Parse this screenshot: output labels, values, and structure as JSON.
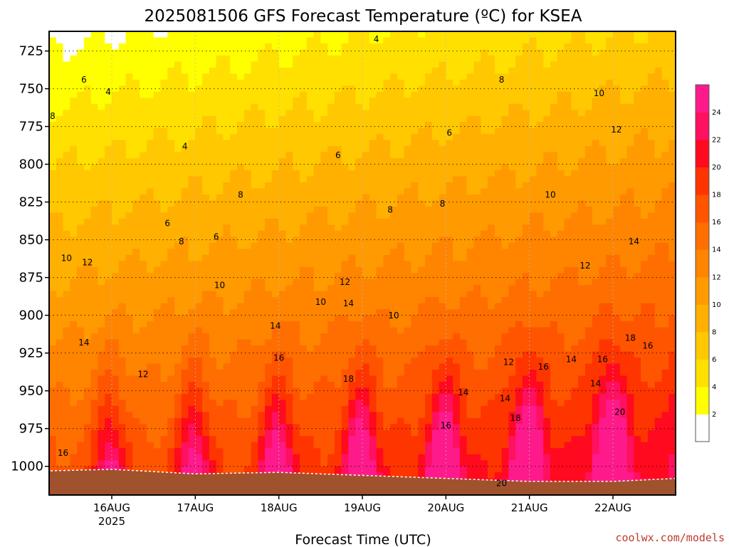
{
  "title": "2025081506 GFS Forecast Temperature (ºC) for KSEA",
  "credit": "coolwx.com/models",
  "chart_data": {
    "type": "heatmap",
    "title": "2025081506 GFS Forecast Temperature (ºC) for KSEA",
    "xlabel": "Forecast Time (UTC)",
    "ylabel": "",
    "x_ticks": [
      {
        "t": 24,
        "label": "16AUG",
        "sublabel": "2025"
      },
      {
        "t": 48,
        "label": "17AUG",
        "sublabel": ""
      },
      {
        "t": 72,
        "label": "18AUG",
        "sublabel": ""
      },
      {
        "t": 96,
        "label": "19AUG",
        "sublabel": ""
      },
      {
        "t": 120,
        "label": "20AUG",
        "sublabel": ""
      },
      {
        "t": 144,
        "label": "21AUG",
        "sublabel": ""
      },
      {
        "t": 168,
        "label": "22AUG",
        "sublabel": ""
      }
    ],
    "xlim": [
      6,
      186
    ],
    "y_ticks": [
      725,
      750,
      775,
      800,
      825,
      850,
      875,
      900,
      925,
      950,
      975,
      1000
    ],
    "ylim": [
      712,
      1019
    ],
    "grid": true,
    "colorbar": {
      "levels": [
        0,
        2,
        4,
        6,
        8,
        10,
        12,
        14,
        16,
        18,
        20,
        22,
        24,
        26
      ],
      "tick_labels": [
        "2",
        "4",
        "6",
        "8",
        "10",
        "12",
        "14",
        "16",
        "18",
        "20",
        "22",
        "24"
      ],
      "colors": [
        "#ffffff",
        "#ffff00",
        "#ffe000",
        "#ffc800",
        "#ffb000",
        "#ff9a00",
        "#ff8400",
        "#ff6e00",
        "#ff5500",
        "#ff3500",
        "#ff0a1e",
        "#ff1060",
        "#ff1a8c"
      ]
    },
    "surface_pressure": [
      {
        "t": 6,
        "p": 1003
      },
      {
        "t": 24,
        "p": 1002
      },
      {
        "t": 48,
        "p": 1005
      },
      {
        "t": 72,
        "p": 1004
      },
      {
        "t": 96,
        "p": 1006
      },
      {
        "t": 120,
        "p": 1008
      },
      {
        "t": 144,
        "p": 1010
      },
      {
        "t": 168,
        "p": 1010
      },
      {
        "t": 186,
        "p": 1008
      }
    ],
    "contour_labels": [
      {
        "t": 10,
        "p": 993,
        "value": "16"
      },
      {
        "t": 16,
        "p": 920,
        "value": "14"
      },
      {
        "t": 11,
        "p": 864,
        "value": "10"
      },
      {
        "t": 17,
        "p": 867,
        "value": "12"
      },
      {
        "t": 7,
        "p": 770,
        "value": "8"
      },
      {
        "t": 16,
        "p": 746,
        "value": "6"
      },
      {
        "t": 23,
        "p": 754,
        "value": "4"
      },
      {
        "t": 33,
        "p": 941,
        "value": "12"
      },
      {
        "t": 40,
        "p": 841,
        "value": "6"
      },
      {
        "t": 44,
        "p": 853,
        "value": "8"
      },
      {
        "t": 45,
        "p": 790,
        "value": "4"
      },
      {
        "t": 55,
        "p": 882,
        "value": "10"
      },
      {
        "t": 54,
        "p": 850,
        "value": "6"
      },
      {
        "t": 61,
        "p": 822,
        "value": "8"
      },
      {
        "t": 71,
        "p": 909,
        "value": "14"
      },
      {
        "t": 72,
        "p": 930,
        "value": "16"
      },
      {
        "t": 84,
        "p": 893,
        "value": "10"
      },
      {
        "t": 91,
        "p": 880,
        "value": "12"
      },
      {
        "t": 92,
        "p": 894,
        "value": "14"
      },
      {
        "t": 92,
        "p": 944,
        "value": "18"
      },
      {
        "t": 89,
        "p": 796,
        "value": "6"
      },
      {
        "t": 100,
        "p": 719,
        "value": "4"
      },
      {
        "t": 104,
        "p": 832,
        "value": "8"
      },
      {
        "t": 105,
        "p": 902,
        "value": "10"
      },
      {
        "t": 120,
        "p": 975,
        "value": "16"
      },
      {
        "t": 125,
        "p": 953,
        "value": "14"
      },
      {
        "t": 119,
        "p": 828,
        "value": "8"
      },
      {
        "t": 121,
        "p": 781,
        "value": "6"
      },
      {
        "t": 136,
        "p": 746,
        "value": "8"
      },
      {
        "t": 138,
        "p": 933,
        "value": "12"
      },
      {
        "t": 137,
        "p": 957,
        "value": "14"
      },
      {
        "t": 140,
        "p": 970,
        "value": "18"
      },
      {
        "t": 136,
        "p": 1013,
        "value": "20"
      },
      {
        "t": 148,
        "p": 936,
        "value": "16"
      },
      {
        "t": 150,
        "p": 822,
        "value": "10"
      },
      {
        "t": 156,
        "p": 931,
        "value": "14"
      },
      {
        "t": 160,
        "p": 869,
        "value": "12"
      },
      {
        "t": 164,
        "p": 755,
        "value": "10"
      },
      {
        "t": 169,
        "p": 779,
        "value": "12"
      },
      {
        "t": 163,
        "p": 947,
        "value": "14"
      },
      {
        "t": 165,
        "p": 931,
        "value": "16"
      },
      {
        "t": 170,
        "p": 966,
        "value": "20"
      },
      {
        "t": 173,
        "p": 917,
        "value": "18"
      },
      {
        "t": 178,
        "p": 922,
        "value": "16"
      },
      {
        "t": 174,
        "p": 853,
        "value": "14"
      }
    ]
  }
}
